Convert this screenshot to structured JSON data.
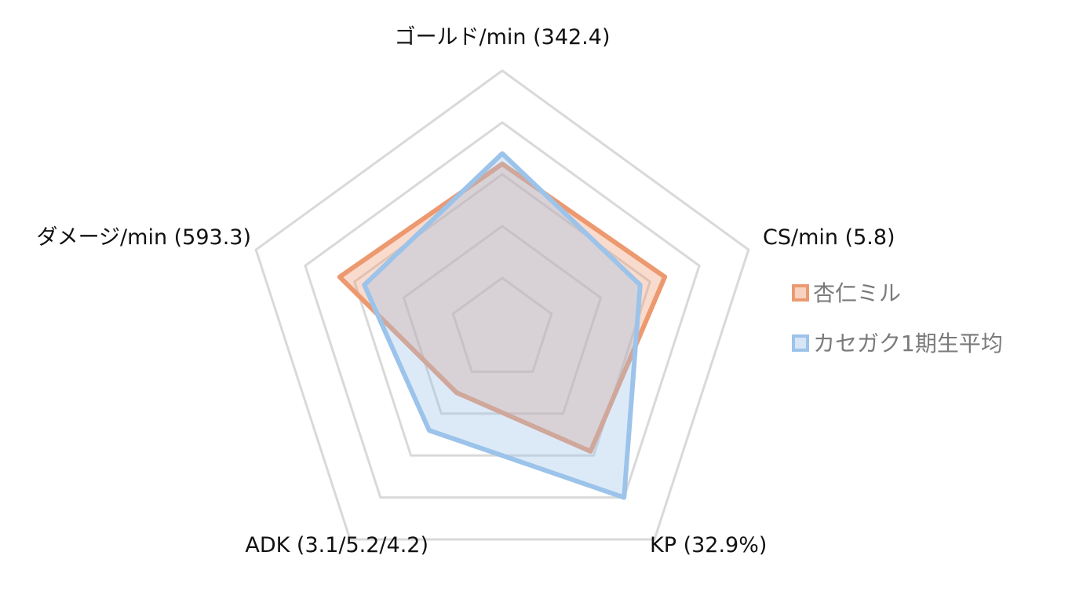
{
  "chart_data": {
    "type": "radar",
    "axes": [
      "ゴールド/min (342.4)",
      "CS/min (5.8)",
      "KP (32.9%)",
      "ADK (3.1/5.2/4.2)",
      "ダメージ/min (593.3)"
    ],
    "rlim": [
      0,
      5
    ],
    "rings": 5,
    "series": [
      {
        "name": "杏仁ミル",
        "values": [
          3.2,
          3.3,
          2.9,
          1.5,
          3.3
        ],
        "color": "#ed9970"
      },
      {
        "name": "カセガク1期生平均",
        "values": [
          3.4,
          2.8,
          4.0,
          2.4,
          2.8
        ],
        "color": "#9cc3ea"
      }
    ],
    "grid": true,
    "legend": "right"
  }
}
